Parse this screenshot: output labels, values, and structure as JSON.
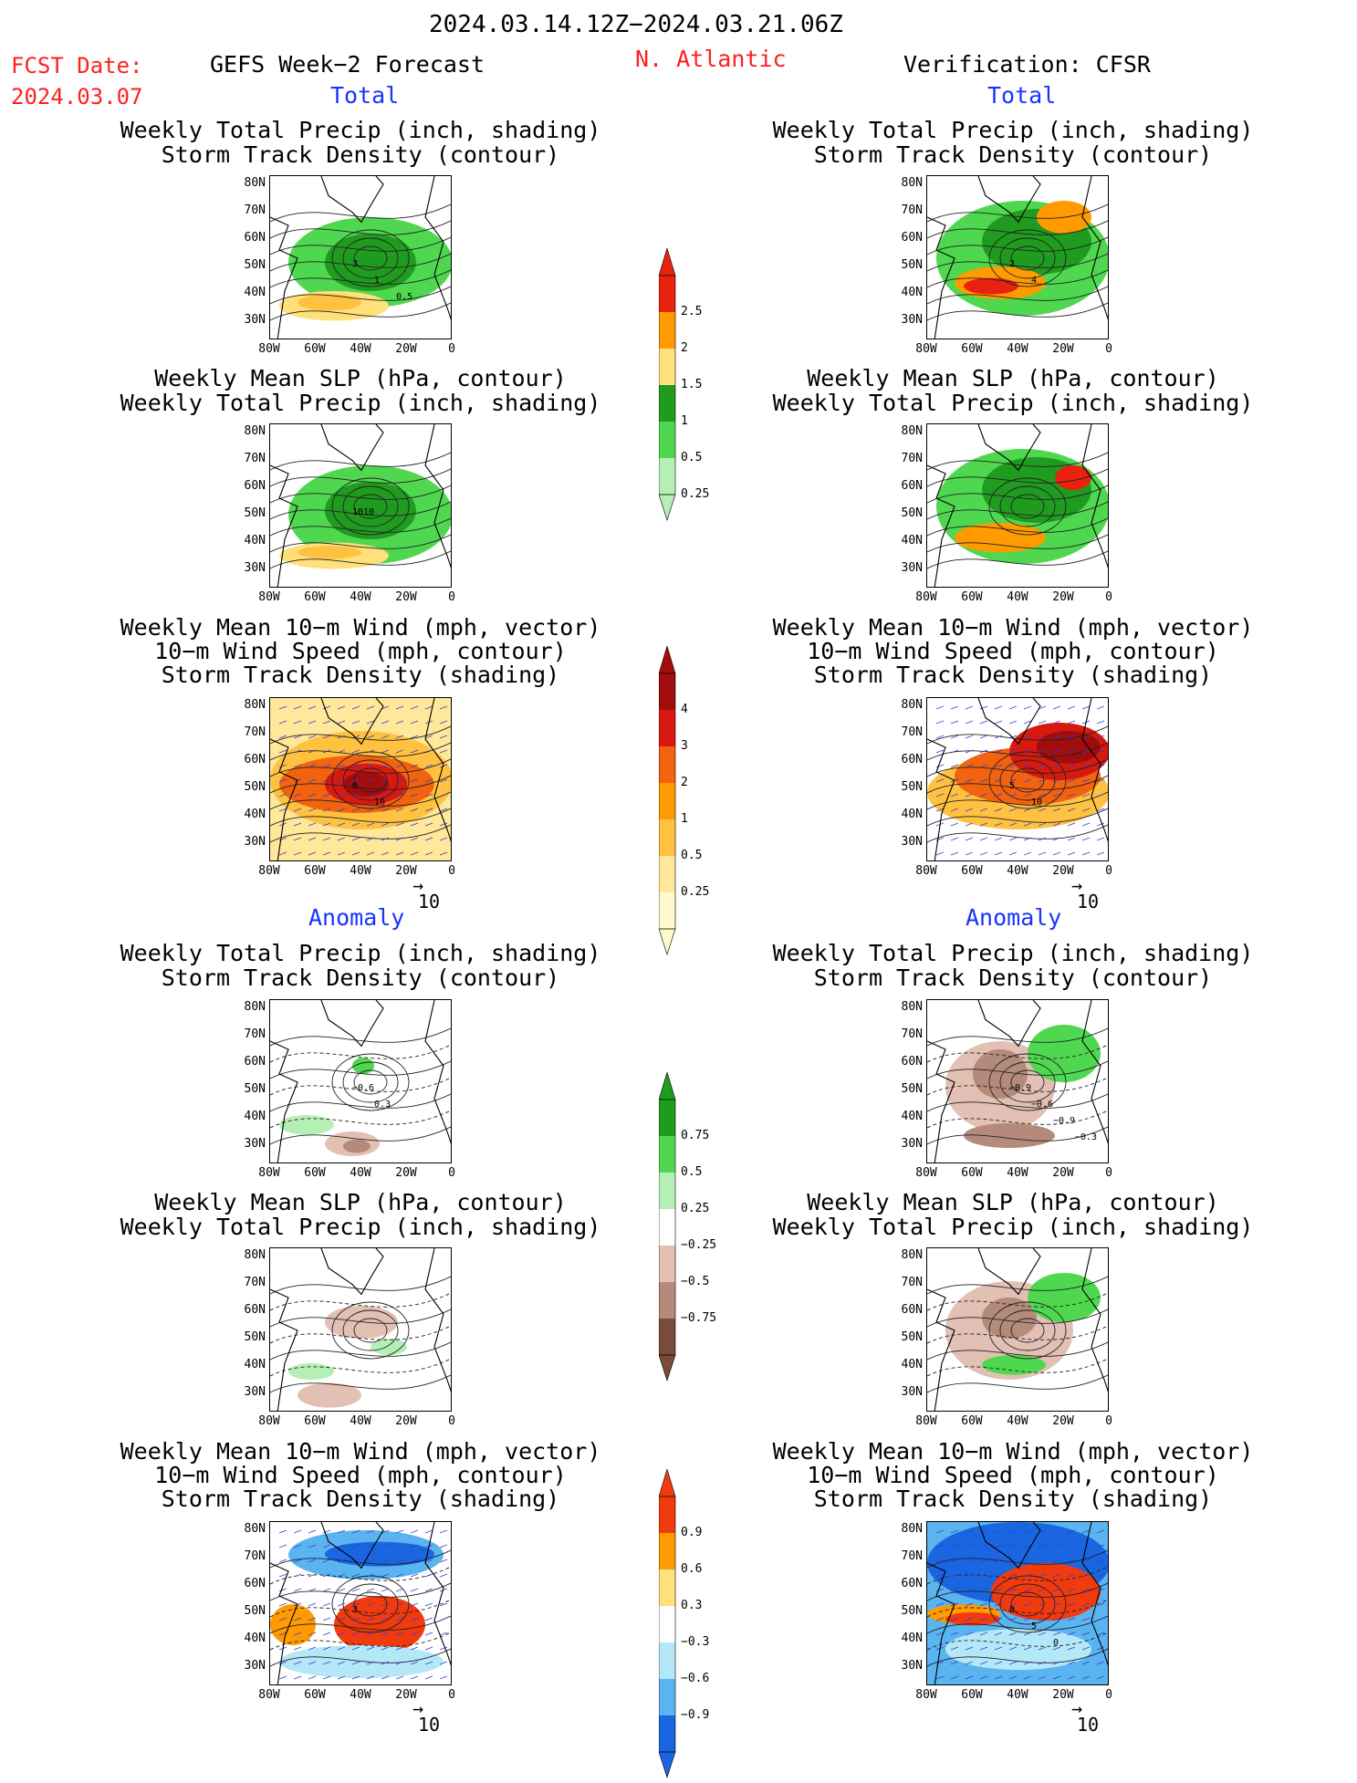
{
  "header": {
    "date_range": "2024.03.14.12Z−2024.03.21.06Z",
    "fcst_label": "FCST Date:",
    "fcst_date": "2024.03.07",
    "left_title": "GEFS Week−2 Forecast",
    "region": "N. Atlantic",
    "right_title": "Verification: CFSR"
  },
  "sections": {
    "total": "Total",
    "anomaly": "Anomaly"
  },
  "titles": {
    "precip_storm": [
      "Weekly Total Precip (inch, shading)",
      "Storm Track Density (contour)"
    ],
    "slp_precip": [
      "Weekly Mean SLP (hPa, contour)",
      "Weekly Total Precip (inch, shading)"
    ],
    "wind_storm": [
      "Weekly Mean 10−m Wind (mph, vector)",
      "10−m Wind Speed (mph, contour)",
      "Storm Track Density (shading)"
    ]
  },
  "axes": {
    "lat_labels": [
      "80N",
      "70N",
      "60N",
      "50N",
      "40N",
      "30N"
    ],
    "lon_labels": [
      "80W",
      "60W",
      "40W",
      "20W",
      "0"
    ]
  },
  "vector_ref": "10",
  "colorbars": {
    "precip_total": {
      "labels": [
        "2.5",
        "2",
        "1.5",
        "1",
        "0.5",
        "0.25"
      ],
      "colors": [
        "#e8220f",
        "#ff9a00",
        "#ffe07a",
        "#1f9b1f",
        "#4fd84f",
        "#b4f0b4"
      ]
    },
    "storm_total": {
      "labels": [
        "4",
        "3",
        "2",
        "1",
        "0.5",
        "0.25"
      ],
      "colors": [
        "#a10c0c",
        "#d8190f",
        "#f2620f",
        "#ff9a00",
        "#ffc240",
        "#ffe89a",
        "#fffacc"
      ]
    },
    "precip_anom": {
      "labels": [
        "0.75",
        "0.5",
        "0.25",
        "−0.25",
        "−0.5",
        "−0.75"
      ],
      "colors": [
        "#1f9b1f",
        "#4fd84f",
        "#b4f0b4",
        "#ffffff",
        "#e2c0b4",
        "#b48a7a",
        "#7a4a3a"
      ]
    },
    "storm_anom": {
      "labels": [
        "0.9",
        "0.6",
        "0.3",
        "−0.3",
        "−0.6",
        "−0.9"
      ],
      "colors": [
        "#f23a0f",
        "#ff9a00",
        "#ffe07a",
        "#ffffff",
        "#b4e8f8",
        "#5ab4f0",
        "#1a66e0"
      ]
    }
  },
  "contour_labels": {
    "p1": [
      "3",
      "1",
      "0.5"
    ],
    "p2": [
      "1010"
    ],
    "p3": [
      "6",
      "10"
    ],
    "p4": [
      "2",
      "4"
    ],
    "p6": [
      "5",
      "10"
    ],
    "p7": [
      "−0.6",
      "0.3"
    ],
    "p10": [
      "−0.9",
      "−0.6",
      "−0.9",
      "−0.3"
    ],
    "p9": [
      "3"
    ],
    "p12": [
      "0",
      "5",
      "0"
    ]
  }
}
